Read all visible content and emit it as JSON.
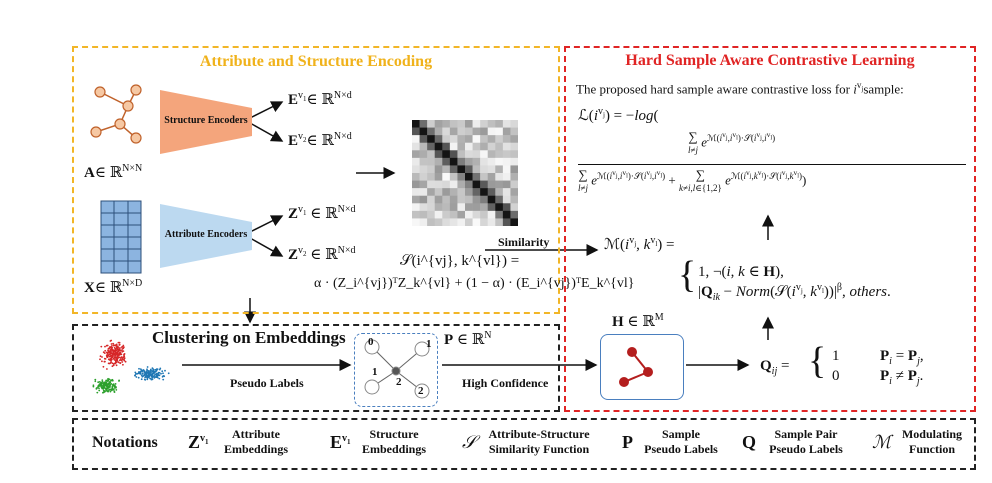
{
  "encoding": {
    "title": "Attribute and Structure Encoding",
    "structure_encoder_label": "Structure Encoders",
    "attribute_encoder_label": "Attribute Encoders",
    "A_label": "A∈ ℝ^{N×N}",
    "X_label": "X∈ ℝ^{N×D}",
    "E1": "E^{v1}∈ ℝ^{N×d}",
    "E2": "E^{v2}∈ ℝ^{N×d}",
    "Z1": "Z^{v1} ∈ ℝ^{N×d}",
    "Z2": "Z^{v2} ∈ ℝ^{N×d}",
    "S_def_line1": "𝒮(i^{vj}, k^{vl}) =",
    "S_def_line2": "α · (Z_i^{vj})ᵀZ_k^{vl} + (1 − α) · (E_i^{vj})ᵀE_k^{vl}",
    "similarity_label": "Similarity"
  },
  "clustering": {
    "title": "Clustering on Embeddings",
    "P_label": "P ∈ ℝ^N",
    "pseudo_labels": "Pseudo Labels",
    "high_confidence": "High Confidence",
    "graph_nodes": [
      "0",
      "1",
      "1",
      "2",
      "2"
    ]
  },
  "hard_sample": {
    "title": "Hard Sample Aware Contrastive Learning",
    "intro": "The proposed hard sample aware contrastive loss for i^{vj}sample:",
    "loss_line1": "ℒ(i^{vj}) = −log(",
    "loss_numerator": "Σ_{l≠j} e^{ℳ(i^{vj},i^{vl})·𝒮(i^{vj},i^{vl})}",
    "loss_denominator": "Σ_{l≠j} e^{ℳ(i^{vj},i^{vl})·𝒮(i^{vj},i^{vl})} + Σ_{k≠i,l∈{1,2}} e^{ℳ(i^{vj},k^{vl})·𝒮(i^{vj},k^{vl})} )",
    "M_def": "ℳ(i^{vj}, k^{vl}) =",
    "M_case1": "1, ¬(i, k ∈ H),",
    "M_case2": "|Q_ik − Norm(𝒮(i^{vj}, k^{vl}))|^β, others.",
    "H_label": "H ∈ ℝ^M",
    "Q_def": "Q_ij =",
    "Q_case1_val": "1",
    "Q_case1_cond": "P_i = P_j,",
    "Q_case2_val": "0",
    "Q_case2_cond": "P_i ≠ P_j."
  },
  "notations": {
    "title": "Notations",
    "items": [
      {
        "symbol": "Z^{v1}",
        "label1": "Attribute",
        "label2": "Embeddings"
      },
      {
        "symbol": "E^{v1}",
        "label1": "Structure",
        "label2": "Embeddings"
      },
      {
        "symbol": "𝒮",
        "label1": "Attribute-Structure",
        "label2": "Similarity Function"
      },
      {
        "symbol": "P",
        "label1": "Sample",
        "label2": "Pseudo Labels"
      },
      {
        "symbol": "Q",
        "label1": "Sample Pair",
        "label2": "Pseudo Labels"
      },
      {
        "symbol": "ℳ",
        "label1": "Modulating",
        "label2": "Function"
      }
    ]
  },
  "colors": {
    "encoding_border": "#f2b627",
    "hard_sample_border": "#e02424",
    "structure_encoder": "#f4a57c",
    "attribute_encoder": "#bcd9f0",
    "node_fill": "#f6c8a3",
    "node_stroke": "#c0622b",
    "grid_fill": "#8cb4e0",
    "H_node": "#b41e1e"
  }
}
